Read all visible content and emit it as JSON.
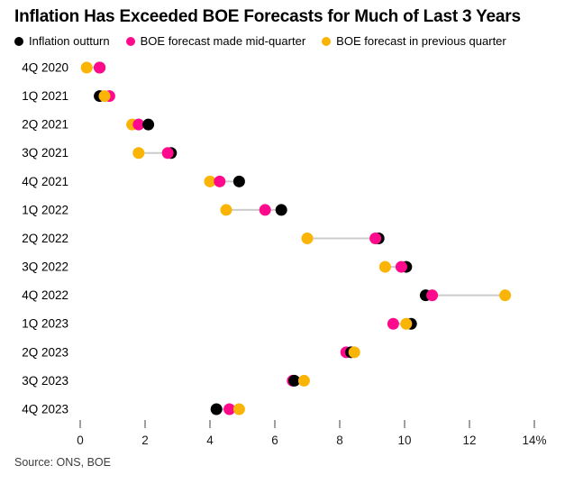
{
  "title": "Inflation Has Exceeded BOE Forecasts for Much of Last 3 Years",
  "source": "Source: ONS, BOE",
  "legend": [
    {
      "key": "outturn",
      "label": "Inflation outturn",
      "color": "#000000"
    },
    {
      "key": "mid_quarter",
      "label": "BOE forecast made mid-quarter",
      "color": "#ff0a8c"
    },
    {
      "key": "prev_quarter",
      "label": "BOE forecast in previous quarter",
      "color": "#f9b405"
    }
  ],
  "chart_data": {
    "type": "scatter",
    "title": "Inflation Has Exceeded BOE Forecasts for Much of Last 3 Years",
    "xlabel": "",
    "ylabel": "",
    "xlim": [
      0,
      14
    ],
    "xticks": [
      0,
      2,
      4,
      6,
      8,
      10,
      12,
      14
    ],
    "last_tick_suffix": "%",
    "grid": false,
    "legend_position": "top",
    "connector_color": "#cccccc",
    "categories": [
      "4Q 2020",
      "1Q 2021",
      "2Q 2021",
      "3Q 2021",
      "4Q 2021",
      "1Q 2022",
      "2Q 2022",
      "3Q 2022",
      "4Q 2022",
      "1Q 2023",
      "2Q 2023",
      "3Q 2023",
      "4Q 2023"
    ],
    "series": [
      {
        "key": "outturn",
        "name": "Inflation outturn",
        "color": "#000000",
        "values": [
          0.6,
          0.6,
          2.1,
          2.8,
          4.9,
          6.2,
          9.2,
          10.05,
          10.65,
          10.2,
          8.35,
          6.6,
          4.2
        ]
      },
      {
        "key": "mid_quarter",
        "name": "BOE forecast made mid-quarter",
        "color": "#ff0a8c",
        "values": [
          0.6,
          0.9,
          1.8,
          2.7,
          4.3,
          5.7,
          9.1,
          9.9,
          10.85,
          9.65,
          8.2,
          6.55,
          4.6
        ]
      },
      {
        "key": "prev_quarter",
        "name": "BOE forecast in previous quarter",
        "color": "#f9b405",
        "values": [
          0.2,
          0.75,
          1.6,
          1.8,
          4.0,
          4.5,
          7.0,
          9.4,
          13.1,
          10.05,
          8.45,
          6.9,
          4.9
        ]
      }
    ],
    "draw_order": [
      [
        "outturn",
        "prev_quarter",
        "mid_quarter"
      ],
      [
        "outturn",
        "mid_quarter",
        "prev_quarter"
      ],
      [
        "prev_quarter",
        "mid_quarter",
        "outturn"
      ],
      [
        "outturn",
        "mid_quarter",
        "prev_quarter"
      ],
      [
        "prev_quarter",
        "mid_quarter",
        "outturn"
      ],
      [
        "prev_quarter",
        "mid_quarter",
        "outturn"
      ],
      [
        "outturn",
        "mid_quarter",
        "prev_quarter"
      ],
      [
        "outturn",
        "mid_quarter",
        "prev_quarter"
      ],
      [
        "outturn",
        "mid_quarter",
        "prev_quarter"
      ],
      [
        "outturn",
        "mid_quarter",
        "prev_quarter"
      ],
      [
        "mid_quarter",
        "outturn",
        "prev_quarter"
      ],
      [
        "mid_quarter",
        "outturn",
        "prev_quarter"
      ],
      [
        "outturn",
        "mid_quarter",
        "prev_quarter"
      ]
    ]
  }
}
